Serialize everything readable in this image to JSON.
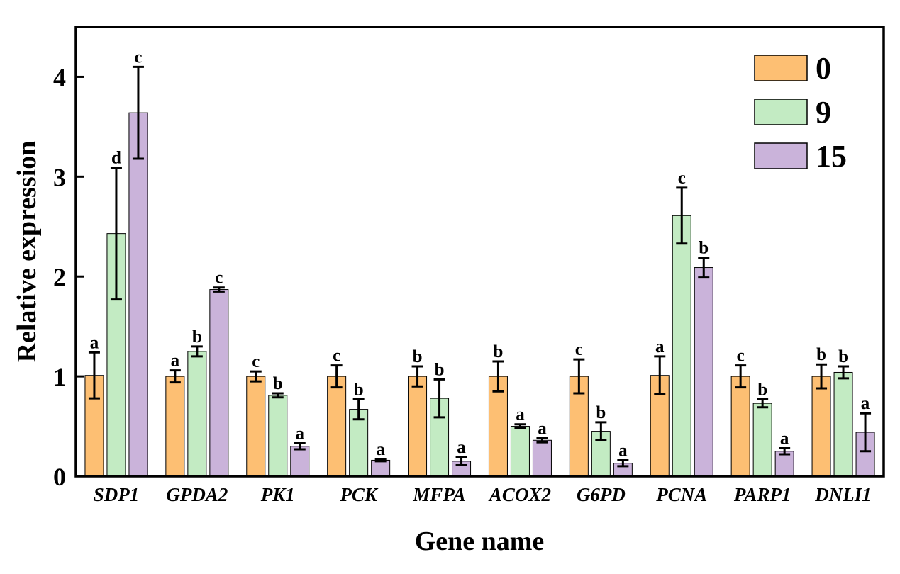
{
  "chart_data": {
    "type": "bar",
    "title": "",
    "xlabel": "Gene name",
    "ylabel": "Relative expression",
    "ylim": [
      0,
      4.5
    ],
    "yticks": [
      0,
      1,
      2,
      3,
      4
    ],
    "legend_position": "top-right",
    "categories": [
      "SDP1",
      "GPDA2",
      "PK1",
      "PCK",
      "MFPA",
      "ACOX2",
      "G6PD",
      "PCNA",
      "PARP1",
      "DNLI1"
    ],
    "series": [
      {
        "name": "0",
        "color": "#FDBF73",
        "values": [
          1.01,
          1.0,
          1.0,
          1.0,
          1.0,
          1.0,
          1.0,
          1.01,
          1.0,
          1.0
        ],
        "errors": [
          0.23,
          0.06,
          0.05,
          0.11,
          0.1,
          0.15,
          0.17,
          0.19,
          0.11,
          0.12
        ],
        "labels": [
          "a",
          "a",
          "c",
          "c",
          "b",
          "b",
          "c",
          "a",
          "c",
          "b"
        ]
      },
      {
        "name": "9",
        "color": "#C3EBC3",
        "values": [
          2.43,
          1.25,
          0.81,
          0.67,
          0.78,
          0.5,
          0.45,
          2.61,
          0.73,
          1.04
        ],
        "errors": [
          0.66,
          0.05,
          0.02,
          0.1,
          0.19,
          0.02,
          0.09,
          0.28,
          0.04,
          0.06
        ],
        "labels": [
          "d",
          "b",
          "b",
          "b",
          "b",
          "a",
          "b",
          "c",
          "b",
          "b"
        ]
      },
      {
        "name": "15",
        "color": "#CAB3DA",
        "values": [
          3.64,
          1.87,
          0.3,
          0.16,
          0.15,
          0.36,
          0.13,
          2.09,
          0.25,
          0.44
        ],
        "errors": [
          0.46,
          0.02,
          0.03,
          0.01,
          0.04,
          0.02,
          0.03,
          0.1,
          0.03,
          0.19
        ],
        "labels": [
          "c",
          "c",
          "a",
          "a",
          "a",
          "a",
          "a",
          "b",
          "a",
          "a"
        ]
      }
    ]
  }
}
